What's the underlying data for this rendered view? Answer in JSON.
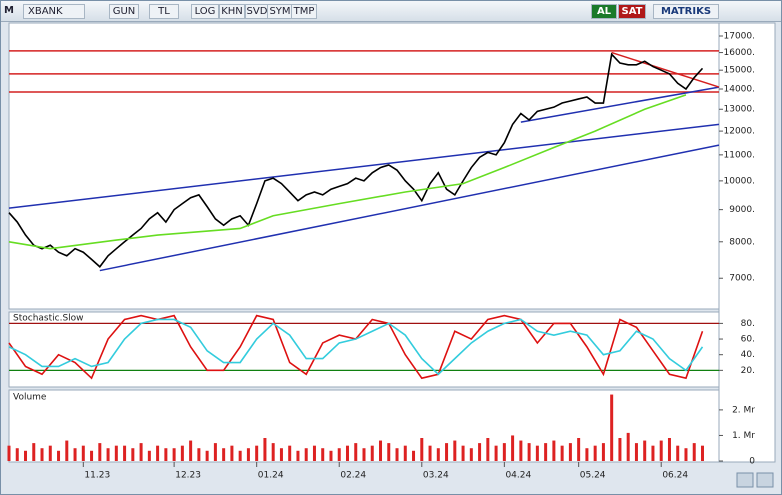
{
  "toolbar": {
    "logo": "M",
    "symbol": "XBANK",
    "buttons": [
      "GUN",
      "TL",
      "LOG",
      "KHN",
      "SVD",
      "SYM",
      "TMP"
    ],
    "buy": "AL",
    "sell": "SAT",
    "brand": "MATRIKS"
  },
  "chart_data": [
    {
      "type": "line",
      "log": true,
      "xlim": [
        0,
        86
      ],
      "ylim": [
        6300,
        17700
      ],
      "yticks": [
        {
          "value": 7000,
          "label": "7000."
        },
        {
          "value": 8000,
          "label": "8000."
        },
        {
          "value": 9000,
          "label": "9000."
        },
        {
          "value": 10000,
          "label": "10000."
        },
        {
          "value": 11000,
          "label": "11000."
        },
        {
          "value": 12000,
          "label": "12000."
        },
        {
          "value": 13000,
          "label": "13000."
        },
        {
          "value": 14000,
          "label": "14000."
        },
        {
          "value": 15000,
          "label": "15000."
        },
        {
          "value": 16000,
          "label": "16000."
        },
        {
          "value": 17000,
          "label": "17000."
        }
      ],
      "series": [
        {
          "color": "#000000",
          "values": [
            8900,
            8600,
            8200,
            7900,
            7800,
            7900,
            7700,
            7600,
            7800,
            7700,
            7500,
            7300,
            7600,
            7800,
            8000,
            8200,
            8400,
            8700,
            8900,
            8600,
            9000,
            9200,
            9400,
            9500,
            9100,
            8700,
            8500,
            8700,
            8800,
            8500,
            9200,
            10000,
            10100,
            9900,
            9600,
            9300,
            9500,
            9600,
            9500,
            9700,
            9800,
            9900,
            10100,
            10000,
            10300,
            10500,
            10600,
            10400,
            10000,
            9700,
            9300,
            9900,
            10300,
            9700,
            9500,
            10000,
            10500,
            10900,
            11100,
            11000,
            11500,
            12300,
            12800,
            12500,
            12900,
            13000,
            13100,
            13300,
            13400,
            13500,
            13600,
            13300,
            13300,
            15900,
            15400,
            15300,
            15300,
            15500,
            15200,
            15000,
            14800,
            14300,
            14000,
            14600,
            15100
          ]
        },
        {
          "color": "#66dd22",
          "x": [
            0,
            5,
            13,
            18,
            28,
            32,
            40,
            48,
            55,
            60,
            66,
            71,
            77,
            82
          ],
          "values": [
            8000,
            7800,
            8050,
            8200,
            8400,
            8800,
            9200,
            9600,
            9900,
            10500,
            11300,
            12000,
            13000,
            13700
          ]
        }
      ],
      "lines": [
        {
          "color": "#d42020",
          "x": [
            0,
            86
          ],
          "y": [
            16100,
            16100
          ]
        },
        {
          "color": "#d42020",
          "x": [
            0,
            86
          ],
          "y": [
            14800,
            14800
          ]
        },
        {
          "color": "#d42020",
          "x": [
            0,
            86
          ],
          "y": [
            13850,
            13850
          ]
        },
        {
          "color": "#2030b0",
          "x": [
            0,
            86
          ],
          "y": [
            9050,
            12300
          ]
        },
        {
          "color": "#2030b0",
          "x": [
            11,
            86
          ],
          "y": [
            7200,
            11400
          ]
        },
        {
          "color": "#2030b0",
          "x": [
            62,
            86
          ],
          "y": [
            12400,
            14100
          ]
        },
        {
          "color": "#d42020",
          "x": [
            73,
            86
          ],
          "y": [
            16000,
            14100
          ]
        }
      ]
    },
    {
      "type": "line",
      "title": "Stochastic.Slow",
      "xlim": [
        0,
        86
      ],
      "ylim": [
        0,
        92
      ],
      "yticks": [
        {
          "value": 20,
          "label": "20."
        },
        {
          "value": 40,
          "label": "40."
        },
        {
          "value": 60,
          "label": "60."
        },
        {
          "value": 80,
          "label": "80."
        }
      ],
      "levels": [
        {
          "value": 80,
          "color": "#a01010"
        },
        {
          "value": 20,
          "color": "#108010"
        }
      ],
      "series": [
        {
          "color": "#dd1111",
          "x": [
            0,
            2,
            4,
            6,
            8,
            10,
            12,
            14,
            16,
            18,
            20,
            22,
            24,
            26,
            28,
            30,
            32,
            34,
            36,
            38,
            40,
            42,
            44,
            46,
            48,
            50,
            52,
            54,
            56,
            58,
            60,
            62,
            64,
            66,
            68,
            70,
            72,
            74,
            76,
            78,
            80,
            82,
            84
          ],
          "values": [
            55,
            25,
            15,
            40,
            30,
            10,
            60,
            85,
            90,
            85,
            90,
            50,
            20,
            20,
            50,
            90,
            85,
            30,
            15,
            55,
            65,
            60,
            85,
            80,
            40,
            10,
            15,
            70,
            60,
            85,
            90,
            85,
            55,
            80,
            80,
            50,
            15,
            85,
            75,
            45,
            15,
            10,
            70
          ]
        },
        {
          "color": "#33ccdd",
          "x": [
            0,
            2,
            4,
            6,
            8,
            10,
            12,
            14,
            16,
            18,
            20,
            22,
            24,
            26,
            28,
            30,
            32,
            34,
            36,
            38,
            40,
            42,
            44,
            46,
            48,
            50,
            52,
            54,
            56,
            58,
            60,
            62,
            64,
            66,
            68,
            70,
            72,
            74,
            76,
            78,
            80,
            82,
            84
          ],
          "values": [
            50,
            40,
            25,
            25,
            35,
            25,
            30,
            60,
            80,
            85,
            85,
            75,
            45,
            30,
            30,
            60,
            80,
            65,
            35,
            35,
            55,
            60,
            70,
            80,
            65,
            35,
            15,
            35,
            55,
            70,
            80,
            85,
            70,
            65,
            70,
            65,
            40,
            45,
            70,
            60,
            35,
            20,
            50
          ]
        }
      ]
    },
    {
      "type": "bar",
      "title": "Volume",
      "color": "#dd2222",
      "xlim": [
        0,
        86
      ],
      "ylim": [
        0,
        2.7
      ],
      "yticks": [
        0,
        {
          "value": 1,
          "label": "1. Mr"
        },
        {
          "value": 2,
          "label": "2. Mr"
        }
      ],
      "xticks": [
        {
          "value": 9,
          "label": "11.23"
        },
        {
          "value": 20,
          "label": "12.23"
        },
        {
          "value": 30,
          "label": "01.24"
        },
        {
          "value": 40,
          "label": "02.24"
        },
        {
          "value": 50,
          "label": "03.24"
        },
        {
          "value": 60,
          "label": "04.24"
        },
        {
          "value": 69,
          "label": "05.24"
        },
        {
          "value": 79,
          "label": "06.24"
        }
      ],
      "values": [
        0.6,
        0.5,
        0.4,
        0.7,
        0.5,
        0.6,
        0.4,
        0.8,
        0.5,
        0.6,
        0.4,
        0.7,
        0.5,
        0.6,
        0.6,
        0.5,
        0.7,
        0.4,
        0.6,
        0.5,
        0.5,
        0.6,
        0.8,
        0.5,
        0.4,
        0.7,
        0.5,
        0.6,
        0.4,
        0.5,
        0.6,
        0.9,
        0.7,
        0.5,
        0.6,
        0.4,
        0.5,
        0.6,
        0.5,
        0.4,
        0.5,
        0.6,
        0.7,
        0.5,
        0.6,
        0.8,
        0.7,
        0.5,
        0.6,
        0.4,
        0.9,
        0.6,
        0.5,
        0.7,
        0.8,
        0.6,
        0.5,
        0.7,
        0.9,
        0.6,
        0.7,
        1.0,
        0.8,
        0.7,
        0.6,
        0.7,
        0.8,
        0.6,
        0.7,
        0.9,
        0.5,
        0.6,
        0.7,
        2.6,
        0.9,
        1.1,
        0.7,
        0.8,
        0.6,
        0.8,
        0.9,
        0.6,
        0.5,
        0.7,
        0.6
      ]
    }
  ]
}
